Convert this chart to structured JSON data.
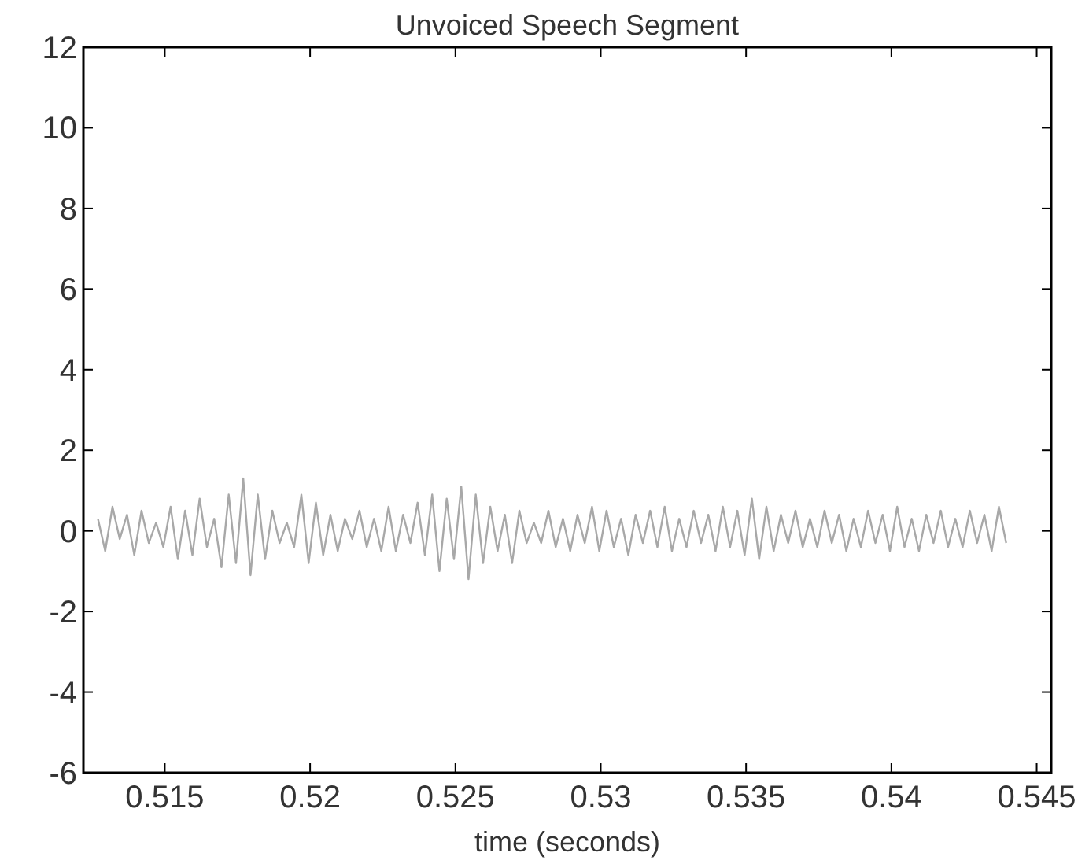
{
  "chart_data": {
    "type": "line",
    "title": "Unvoiced Speech Segment",
    "xlabel": "time (seconds)",
    "xlim": [
      0.5122,
      0.5455
    ],
    "xticks": [
      0.515,
      0.52,
      0.525,
      0.53,
      0.535,
      0.54,
      0.545
    ],
    "ylim": [
      -6,
      12
    ],
    "yticks": [
      -6,
      -4,
      -2,
      0,
      2,
      4,
      6,
      8,
      10,
      12
    ],
    "grid": false,
    "series": [
      {
        "color": "#a8a8a8",
        "x": [
          0.5127,
          0.51295,
          0.5132,
          0.51345,
          0.5137,
          0.51395,
          0.5142,
          0.51445,
          0.5147,
          0.51495,
          0.5152,
          0.51545,
          0.5157,
          0.51595,
          0.5162,
          0.51645,
          0.5167,
          0.51695,
          0.5172,
          0.51745,
          0.5177,
          0.51795,
          0.5182,
          0.51845,
          0.5187,
          0.51895,
          0.5192,
          0.51945,
          0.5197,
          0.51995,
          0.5202,
          0.52045,
          0.5207,
          0.52095,
          0.5212,
          0.52145,
          0.5217,
          0.52195,
          0.5222,
          0.52245,
          0.5227,
          0.52295,
          0.5232,
          0.52345,
          0.5237,
          0.52395,
          0.5242,
          0.52445,
          0.5247,
          0.52495,
          0.5252,
          0.52545,
          0.5257,
          0.52595,
          0.5262,
          0.52645,
          0.5267,
          0.52695,
          0.5272,
          0.52745,
          0.5277,
          0.52795,
          0.5282,
          0.52845,
          0.5287,
          0.52895,
          0.5292,
          0.52945,
          0.5297,
          0.52995,
          0.5302,
          0.53045,
          0.5307,
          0.53095,
          0.5312,
          0.53145,
          0.5317,
          0.53195,
          0.5322,
          0.53245,
          0.5327,
          0.53295,
          0.5332,
          0.53345,
          0.5337,
          0.53395,
          0.5342,
          0.53445,
          0.5347,
          0.53495,
          0.5352,
          0.53545,
          0.5357,
          0.53595,
          0.5362,
          0.53645,
          0.5367,
          0.53695,
          0.5372,
          0.53745,
          0.5377,
          0.53795,
          0.5382,
          0.53845,
          0.5387,
          0.53895,
          0.5392,
          0.53945,
          0.5397,
          0.53995,
          0.5402,
          0.54045,
          0.5407,
          0.54095,
          0.5412,
          0.54145,
          0.5417,
          0.54195,
          0.5422,
          0.54245,
          0.5427,
          0.54295,
          0.5432,
          0.54345,
          0.5437,
          0.54395
        ],
        "values": [
          0.3,
          -0.5,
          0.6,
          -0.2,
          0.4,
          -0.6,
          0.5,
          -0.3,
          0.2,
          -0.4,
          0.6,
          -0.7,
          0.5,
          -0.6,
          0.8,
          -0.4,
          0.3,
          -0.9,
          0.9,
          -0.8,
          1.3,
          -1.1,
          0.9,
          -0.7,
          0.5,
          -0.3,
          0.2,
          -0.4,
          0.9,
          -0.8,
          0.7,
          -0.6,
          0.4,
          -0.5,
          0.3,
          -0.2,
          0.5,
          -0.4,
          0.3,
          -0.5,
          0.6,
          -0.5,
          0.4,
          -0.3,
          0.7,
          -0.6,
          0.9,
          -1.0,
          0.8,
          -0.7,
          1.1,
          -1.2,
          0.9,
          -0.8,
          0.6,
          -0.5,
          0.4,
          -0.8,
          0.5,
          -0.3,
          0.2,
          -0.3,
          0.5,
          -0.4,
          0.3,
          -0.5,
          0.4,
          -0.3,
          0.6,
          -0.5,
          0.5,
          -0.4,
          0.3,
          -0.6,
          0.4,
          -0.3,
          0.5,
          -0.4,
          0.6,
          -0.5,
          0.3,
          -0.4,
          0.5,
          -0.3,
          0.4,
          -0.5,
          0.6,
          -0.4,
          0.5,
          -0.6,
          0.8,
          -0.7,
          0.6,
          -0.5,
          0.4,
          -0.3,
          0.5,
          -0.4,
          0.3,
          -0.4,
          0.5,
          -0.3,
          0.4,
          -0.5,
          0.3,
          -0.4,
          0.5,
          -0.3,
          0.4,
          -0.5,
          0.6,
          -0.4,
          0.3,
          -0.5,
          0.4,
          -0.3,
          0.5,
          -0.4,
          0.3,
          -0.4,
          0.5,
          -0.3,
          0.4,
          -0.5,
          0.6,
          -0.3
        ]
      }
    ]
  }
}
